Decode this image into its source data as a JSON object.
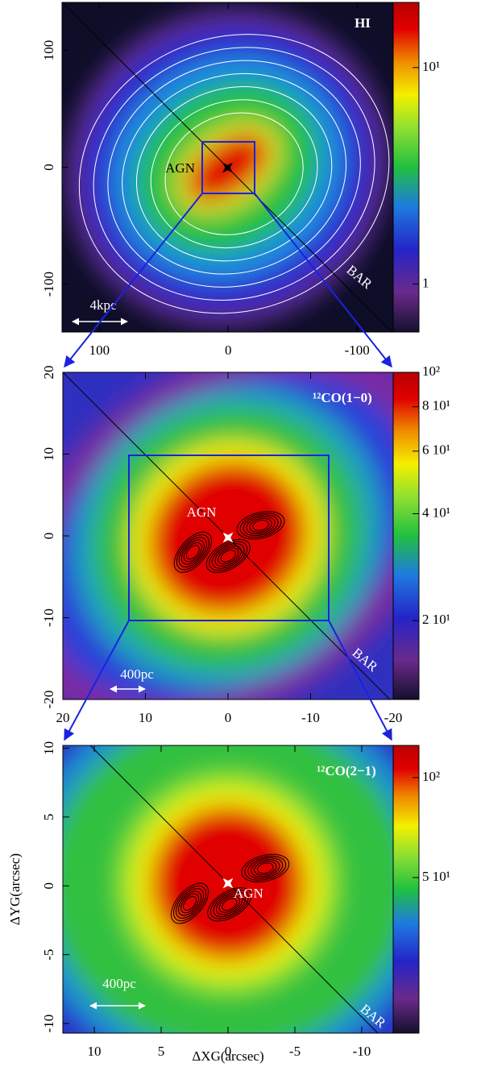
{
  "chart_data": [
    {
      "type": "map",
      "title": "HI",
      "annotations": [
        "AGN",
        "BAR",
        "4kpc"
      ],
      "xlim": [
        129,
        -128
      ],
      "ylim": [
        -141,
        141
      ],
      "xticks": [
        100,
        0,
        -100
      ],
      "yticks": [
        100,
        0,
        -100
      ],
      "colorbar": {
        "scale": "log",
        "clim": [
          0.6,
          20
        ],
        "ticks": [
          {
            "value": 10,
            "label": "10¹"
          },
          {
            "value": 1,
            "label": "1"
          }
        ]
      }
    },
    {
      "type": "map",
      "title": "¹²CO(1−0)",
      "annotations": [
        "AGN",
        "BAR",
        "400pc"
      ],
      "xlim": [
        20,
        -20
      ],
      "ylim": [
        -20,
        20
      ],
      "xticks": [
        20,
        10,
        0,
        -10,
        -20
      ],
      "yticks": [
        20,
        10,
        0,
        -10,
        -20
      ],
      "colorbar": {
        "scale": "log",
        "clim": [
          12,
          100
        ],
        "ticks": [
          {
            "value": 100,
            "label": "10²"
          },
          {
            "value": 80,
            "label": "8 10¹"
          },
          {
            "value": 60,
            "label": "6 10¹"
          },
          {
            "value": 40,
            "label": "4 10¹"
          },
          {
            "value": 20,
            "label": "2 10¹"
          }
        ]
      }
    },
    {
      "type": "map",
      "title": "¹²CO(2−1)",
      "annotations": [
        "AGN",
        "BAR",
        "400pc"
      ],
      "x_label": "ΔXG(arcsec)",
      "y_label": "ΔYG(arcsec)",
      "xlim": [
        12.35,
        -12.35
      ],
      "ylim": [
        -10.7,
        10.2
      ],
      "xticks": [
        10,
        5,
        0,
        -5,
        -10
      ],
      "yticks": [
        10,
        5,
        0,
        -5,
        -10
      ],
      "colorbar": {
        "scale": "log",
        "clim": [
          17,
          125
        ],
        "ticks": [
          {
            "value": 100,
            "label": "10²"
          },
          {
            "value": 50,
            "label": "5 10¹"
          }
        ]
      }
    }
  ]
}
